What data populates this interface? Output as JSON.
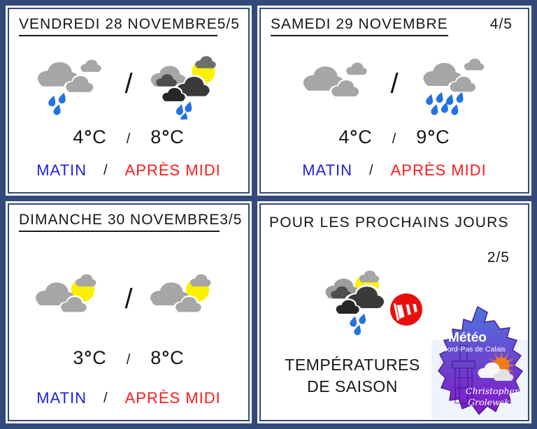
{
  "colors": {
    "frame": "#32497A",
    "text": "#161616",
    "matin": "#1F1FE0",
    "apres_midi": "#FB1A1A",
    "cloud_gray": "#A6A6A6",
    "cloud_gray_dark": "#4E4E4E",
    "cloud_charcoal": "#3A3A3A",
    "cloud_black": "#262626",
    "sun_yellow": "#FAF000",
    "rain_blue": "#2472E0",
    "wind_red": "#E90E0E",
    "logo_map_top": "#4E73DE",
    "logo_map_mid": "#6A46D0",
    "logo_map_bottom": "#8318C9",
    "logo_sun_orange": "#ED7C17"
  },
  "slash": "/",
  "days": [
    {
      "title": "VENDREDI 28 NOVEMBRE",
      "rating": "5/5",
      "morning": {
        "icon": "rain-clouds-icon",
        "temp": "4°C"
      },
      "afternoon": {
        "icon": "sun-dark-clouds-rain-icon",
        "temp": "8°C"
      },
      "period_morning": "MATIN",
      "period_afternoon": "APRÈS MIDI"
    },
    {
      "title": "SAMEDI 29 NOVEMBRE",
      "rating": "4/5",
      "morning": {
        "icon": "clouds-icon",
        "temp": "4°C"
      },
      "afternoon": {
        "icon": "rain-clouds-heavy-icon",
        "temp": "9°C"
      },
      "period_morning": "MATIN",
      "period_afternoon": "APRÈS MIDI"
    },
    {
      "title": "DIMANCHE 30 NOVEMBRE",
      "rating": "3/5",
      "morning": {
        "icon": "sun-clouds-icon",
        "temp": "3°C"
      },
      "afternoon": {
        "icon": "sun-clouds-icon",
        "temp": "8°C"
      },
      "period_morning": "MATIN",
      "period_afternoon": "APRÈS MIDI"
    }
  ],
  "outlook": {
    "title": "POUR LES PROCHAINS JOURS",
    "rating": "2/5",
    "icon": "sun-clouds-rain-wind-icon",
    "caption_line1": "TEMPÉRATURES",
    "caption_line2": "DE SAISON",
    "logo": {
      "title": "Météo",
      "subtitle": "Nord-Pas de Calais",
      "signature_line1": "Christopher",
      "signature_line2": "Grolewski"
    }
  }
}
